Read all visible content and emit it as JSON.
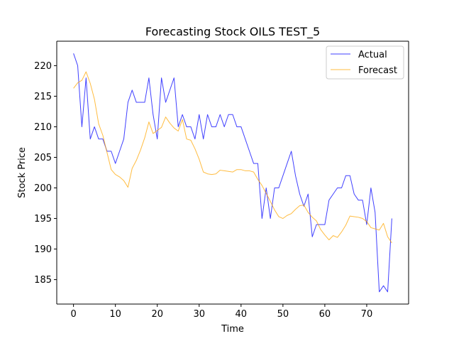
{
  "chart_data": {
    "type": "line",
    "title": "Forecasting Stock OILS TEST_5",
    "xlabel": "Time",
    "ylabel": "Stock Price",
    "xlim": [
      -4,
      80
    ],
    "ylim": [
      181,
      224
    ],
    "xticks": [
      0,
      10,
      20,
      30,
      40,
      50,
      60,
      70
    ],
    "yticks": [
      185,
      190,
      195,
      200,
      205,
      210,
      215,
      220
    ],
    "grid": false,
    "legend_position": "upper right",
    "series": [
      {
        "name": "Actual",
        "color": "#0000ff",
        "x": [
          0,
          1,
          2,
          3,
          4,
          5,
          6,
          7,
          8,
          9,
          10,
          11,
          12,
          13,
          14,
          15,
          16,
          17,
          18,
          19,
          20,
          21,
          22,
          23,
          24,
          25,
          26,
          27,
          28,
          29,
          30,
          31,
          32,
          33,
          34,
          35,
          36,
          37,
          38,
          39,
          40,
          41,
          42,
          43,
          44,
          45,
          46,
          47,
          48,
          49,
          50,
          51,
          52,
          53,
          54,
          55,
          56,
          57,
          58,
          59,
          60,
          61,
          62,
          63,
          64,
          65,
          66,
          67,
          68,
          69,
          70,
          71,
          72,
          73,
          74,
          75,
          76
        ],
        "values": [
          222,
          220,
          210,
          218,
          208,
          210,
          208,
          208,
          206,
          206,
          204,
          206,
          208,
          214,
          216,
          214,
          214,
          214,
          218,
          212,
          208,
          218,
          214,
          216,
          218,
          210,
          212,
          210,
          210,
          208,
          212,
          208,
          212,
          210,
          210,
          212,
          210,
          212,
          212,
          210,
          210,
          208,
          206,
          204,
          204,
          195,
          200,
          195,
          200,
          200,
          202,
          204,
          206,
          202,
          199,
          197,
          199,
          192,
          194,
          194,
          194,
          198,
          199,
          200,
          200,
          202,
          202,
          199,
          198,
          198,
          194,
          200,
          196,
          183,
          184,
          183,
          195
        ]
      },
      {
        "name": "Forecast",
        "color": "#ffa500",
        "x": [
          0,
          1,
          2,
          3,
          4,
          5,
          6,
          7,
          8,
          9,
          10,
          11,
          12,
          13,
          14,
          15,
          16,
          17,
          18,
          19,
          20,
          21,
          22,
          23,
          24,
          25,
          26,
          27,
          28,
          29,
          30,
          31,
          32,
          33,
          34,
          35,
          36,
          37,
          38,
          39,
          40,
          41,
          42,
          43,
          44,
          45,
          46,
          47,
          48,
          49,
          50,
          51,
          52,
          53,
          54,
          55,
          56,
          57,
          58,
          59,
          60,
          61,
          62,
          63,
          64,
          65,
          66,
          67,
          68,
          69,
          70,
          71,
          72,
          73,
          74,
          75,
          76
        ],
        "values": [
          216.3,
          217.2,
          217.6,
          219.0,
          217.1,
          214.5,
          210.5,
          208.6,
          205.8,
          203.0,
          202.2,
          201.8,
          201.2,
          200.1,
          203.2,
          204.5,
          206.2,
          208.2,
          210.8,
          208.9,
          209.4,
          209.9,
          211.6,
          210.6,
          209.8,
          209.3,
          211.2,
          208.0,
          207.8,
          206.4,
          204.7,
          202.6,
          202.3,
          202.2,
          202.3,
          202.9,
          202.8,
          202.7,
          202.6,
          203.0,
          203.0,
          202.8,
          202.8,
          202.6,
          201.4,
          200.4,
          199.1,
          197.8,
          196.4,
          195.3,
          195.0,
          195.5,
          195.8,
          196.5,
          197.1,
          197.2,
          196.0,
          195.2,
          194.6,
          193.2,
          192.3,
          191.5,
          192.2,
          191.9,
          192.8,
          193.9,
          195.4,
          195.3,
          195.2,
          195.0,
          194.5,
          193.5,
          193.3,
          193.1,
          194.2,
          192.0,
          191.0
        ]
      }
    ]
  }
}
